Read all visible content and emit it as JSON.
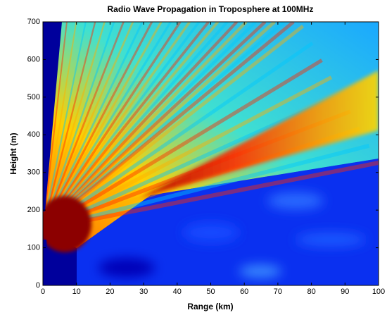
{
  "chart_data": {
    "type": "heatmap",
    "title": "Radio Wave Propagation in Troposphere at 100MHz",
    "x_label": "Range (km)",
    "y_label": "Height (m)",
    "xlim": [
      0,
      100
    ],
    "ylim": [
      0,
      700
    ],
    "xticks": [
      0,
      10,
      20,
      30,
      40,
      50,
      60,
      70,
      80,
      90,
      100
    ],
    "yticks": [
      0,
      100,
      200,
      300,
      400,
      500,
      600,
      700
    ],
    "grid": false
  }
}
